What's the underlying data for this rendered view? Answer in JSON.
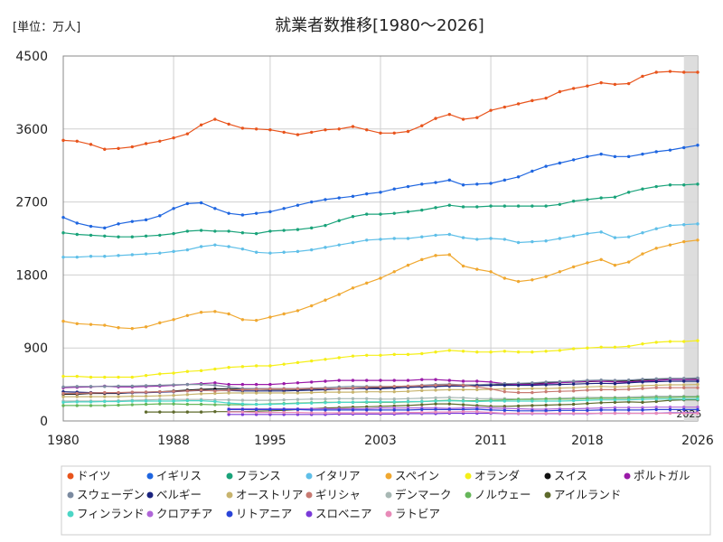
{
  "chart_data": {
    "type": "line",
    "title": "就業者数推移[1980～2026]",
    "unit_label": "[単位：万人]",
    "ylim": [
      0,
      4500
    ],
    "xlim": [
      1980,
      2026
    ],
    "y_ticks": [
      "0",
      "900",
      "1800",
      "2700",
      "3600",
      "4500"
    ],
    "x_ticks": [
      "1980",
      "1988",
      "1995",
      "2003",
      "2011",
      "2018",
      "2026"
    ],
    "highlight_label": "2025",
    "highlight_range": [
      2025,
      2026
    ],
    "grid": true,
    "legend_position": "bottom",
    "series": [
      {
        "name": "ドイツ",
        "color": "#e8541c",
        "x0": 1980,
        "values": [
          3460,
          3450,
          3410,
          3350,
          3360,
          3380,
          3420,
          3450,
          3490,
          3540,
          3650,
          3720,
          3660,
          3610,
          3600,
          3590,
          3560,
          3530,
          3560,
          3590,
          3600,
          3630,
          3590,
          3550,
          3550,
          3570,
          3640,
          3730,
          3780,
          3720,
          3740,
          3830,
          3870,
          3910,
          3950,
          3980,
          4060,
          4100,
          4130,
          4170,
          4150,
          4160,
          4250,
          4300,
          4310,
          4300,
          4300
        ]
      },
      {
        "name": "イギリス",
        "color": "#1f66e0",
        "x0": 1980,
        "values": [
          2510,
          2440,
          2400,
          2380,
          2430,
          2460,
          2480,
          2530,
          2620,
          2680,
          2690,
          2620,
          2560,
          2540,
          2560,
          2580,
          2620,
          2660,
          2700,
          2730,
          2750,
          2770,
          2800,
          2820,
          2860,
          2890,
          2920,
          2940,
          2970,
          2910,
          2920,
          2930,
          2970,
          3010,
          3080,
          3140,
          3180,
          3220,
          3260,
          3290,
          3260,
          3260,
          3290,
          3320,
          3340,
          3370,
          3400
        ]
      },
      {
        "name": "フランス",
        "color": "#1aa37a",
        "x0": 1980,
        "values": [
          2320,
          2300,
          2290,
          2280,
          2270,
          2270,
          2280,
          2290,
          2310,
          2340,
          2350,
          2340,
          2340,
          2320,
          2310,
          2340,
          2350,
          2360,
          2380,
          2410,
          2470,
          2520,
          2550,
          2550,
          2560,
          2580,
          2600,
          2630,
          2660,
          2640,
          2640,
          2650,
          2650,
          2650,
          2650,
          2650,
          2670,
          2710,
          2730,
          2750,
          2760,
          2820,
          2860,
          2890,
          2910,
          2910,
          2920
        ]
      },
      {
        "name": "イタリア",
        "color": "#5fbfe8",
        "x0": 1980,
        "values": [
          2020,
          2020,
          2030,
          2030,
          2040,
          2050,
          2060,
          2070,
          2090,
          2110,
          2150,
          2170,
          2150,
          2120,
          2080,
          2070,
          2080,
          2090,
          2110,
          2140,
          2170,
          2200,
          2230,
          2240,
          2250,
          2250,
          2270,
          2290,
          2300,
          2260,
          2240,
          2250,
          2240,
          2200,
          2210,
          2220,
          2250,
          2280,
          2310,
          2330,
          2260,
          2270,
          2320,
          2370,
          2410,
          2420,
          2430
        ]
      },
      {
        "name": "スペイン",
        "color": "#f0a830",
        "x0": 1980,
        "values": [
          1230,
          1200,
          1190,
          1180,
          1150,
          1140,
          1160,
          1210,
          1250,
          1300,
          1340,
          1350,
          1320,
          1250,
          1240,
          1280,
          1320,
          1360,
          1420,
          1490,
          1560,
          1640,
          1700,
          1760,
          1840,
          1920,
          1990,
          2040,
          2050,
          1910,
          1870,
          1840,
          1760,
          1720,
          1740,
          1780,
          1840,
          1900,
          1950,
          1990,
          1920,
          1960,
          2060,
          2130,
          2170,
          2210,
          2230
        ]
      },
      {
        "name": "オランダ",
        "color": "#f5ef18",
        "x0": 1980,
        "values": [
          550,
          550,
          540,
          540,
          540,
          540,
          560,
          580,
          590,
          610,
          620,
          640,
          660,
          670,
          680,
          680,
          700,
          720,
          740,
          760,
          780,
          800,
          810,
          810,
          820,
          820,
          830,
          850,
          870,
          860,
          850,
          850,
          860,
          850,
          850,
          860,
          870,
          890,
          900,
          910,
          910,
          920,
          950,
          970,
          980,
          980,
          990
        ]
      },
      {
        "name": "スイス",
        "color": "#111111",
        "x0": 1980,
        "values": [
          330,
          330,
          340,
          340,
          340,
          350,
          355,
          360,
          370,
          380,
          390,
          395,
          395,
          390,
          390,
          390,
          390,
          390,
          395,
          400,
          400,
          405,
          410,
          410,
          410,
          415,
          420,
          425,
          435,
          440,
          440,
          440,
          450,
          455,
          465,
          470,
          475,
          480,
          485,
          490,
          490,
          495,
          505,
          515,
          520,
          520,
          525
        ]
      },
      {
        "name": "ポルトガル",
        "color": "#9a1aa8",
        "x0": 1980,
        "values": [
          410,
          415,
          420,
          430,
          420,
          420,
          425,
          430,
          440,
          450,
          460,
          470,
          450,
          450,
          450,
          450,
          460,
          470,
          480,
          490,
          500,
          500,
          500,
          500,
          500,
          500,
          510,
          510,
          500,
          490,
          490,
          480,
          460,
          450,
          450,
          460,
          470,
          480,
          490,
          490,
          480,
          480,
          490,
          500,
          510,
          510,
          510
        ]
      },
      {
        "name": "スウェーデン",
        "color": "#7b8aa0",
        "x0": 1980,
        "values": [
          420,
          425,
          425,
          425,
          430,
          430,
          435,
          440,
          445,
          450,
          450,
          440,
          420,
          400,
          400,
          400,
          400,
          400,
          405,
          410,
          420,
          425,
          425,
          425,
          425,
          430,
          440,
          450,
          455,
          445,
          445,
          455,
          460,
          465,
          470,
          480,
          485,
          490,
          500,
          505,
          500,
          505,
          515,
          520,
          525,
          525,
          530
        ]
      },
      {
        "name": "ベルギー",
        "color": "#1a237e",
        "x0": 1980,
        "values": [
          360,
          355,
          350,
          345,
          345,
          350,
          350,
          355,
          360,
          370,
          375,
          375,
          375,
          370,
          370,
          370,
          370,
          375,
          380,
          385,
          395,
          400,
          400,
          400,
          405,
          415,
          420,
          425,
          430,
          430,
          435,
          440,
          440,
          440,
          440,
          445,
          450,
          455,
          460,
          465,
          460,
          470,
          480,
          485,
          490,
          490,
          490
        ]
      },
      {
        "name": "オーストリア",
        "color": "#c8b46e",
        "x0": 1980,
        "values": [
          300,
          300,
          300,
          300,
          300,
          305,
          305,
          310,
          315,
          325,
          335,
          340,
          345,
          345,
          345,
          345,
          345,
          345,
          350,
          355,
          355,
          355,
          360,
          360,
          360,
          365,
          375,
          380,
          385,
          385,
          385,
          390,
          395,
          395,
          400,
          400,
          405,
          410,
          420,
          425,
          420,
          425,
          435,
          440,
          445,
          445,
          450
        ]
      },
      {
        "name": "ギリシャ",
        "color": "#c87a72",
        "x0": 1980,
        "values": [
          340,
          340,
          345,
          350,
          350,
          355,
          355,
          360,
          365,
          370,
          380,
          370,
          380,
          385,
          390,
          395,
          395,
          395,
          400,
          400,
          400,
          405,
          415,
          420,
          425,
          430,
          435,
          440,
          445,
          440,
          420,
          395,
          360,
          350,
          350,
          360,
          365,
          370,
          380,
          385,
          385,
          390,
          400,
          410,
          410,
          410,
          410
        ]
      },
      {
        "name": "デンマーク",
        "color": "#a8b8b4",
        "x0": 1980,
        "values": [
          245,
          245,
          245,
          245,
          250,
          255,
          260,
          265,
          265,
          265,
          265,
          260,
          260,
          255,
          255,
          255,
          260,
          265,
          270,
          270,
          275,
          275,
          275,
          270,
          270,
          275,
          280,
          285,
          290,
          285,
          275,
          275,
          275,
          270,
          275,
          275,
          280,
          285,
          290,
          290,
          290,
          295,
          300,
          305,
          305,
          305,
          305
        ]
      },
      {
        "name": "ノルウェー",
        "color": "#66b65a",
        "x0": 1980,
        "values": [
          190,
          190,
          190,
          190,
          195,
          200,
          205,
          210,
          210,
          205,
          205,
          200,
          200,
          200,
          205,
          210,
          215,
          220,
          225,
          230,
          230,
          230,
          230,
          230,
          230,
          235,
          240,
          250,
          255,
          250,
          250,
          255,
          260,
          265,
          265,
          270,
          270,
          270,
          275,
          280,
          280,
          280,
          285,
          290,
          290,
          295,
          295
        ]
      },
      {
        "name": "アイルランド",
        "color": "#5e6a2c",
        "x0": 1986,
        "values": [
          110,
          110,
          110,
          110,
          110,
          115,
          115,
          115,
          120,
          125,
          130,
          140,
          150,
          160,
          165,
          170,
          175,
          180,
          185,
          190,
          200,
          210,
          210,
          200,
          190,
          180,
          180,
          185,
          190,
          195,
          200,
          205,
          215,
          225,
          230,
          235,
          230,
          240,
          255,
          260,
          260
        ]
      },
      {
        "name": "フィンランド",
        "color": "#4cd6c6",
        "x0": 1980,
        "values": [
          230,
          235,
          235,
          240,
          240,
          245,
          245,
          245,
          245,
          250,
          250,
          240,
          220,
          210,
          205,
          205,
          210,
          215,
          220,
          225,
          230,
          230,
          235,
          235,
          235,
          240,
          240,
          245,
          250,
          245,
          240,
          245,
          245,
          245,
          245,
          245,
          245,
          250,
          255,
          260,
          260,
          260,
          265,
          270,
          270,
          270,
          270
        ]
      },
      {
        "name": "クロアチア",
        "color": "#b066d8",
        "x0": 1992,
        "values": [
          150,
          150,
          150,
          150,
          150,
          150,
          150,
          150,
          150,
          150,
          150,
          160,
          160,
          160,
          160,
          160,
          155,
          160,
          165,
          160,
          155,
          150,
          145,
          145,
          150,
          150,
          155,
          160,
          165,
          165,
          165,
          170,
          170,
          170,
          170
        ]
      },
      {
        "name": "リトアニア",
        "color": "#2a44d8",
        "x0": 1992,
        "values": [
          140,
          140,
          140,
          140,
          140,
          140,
          135,
          135,
          135,
          135,
          135,
          135,
          135,
          135,
          140,
          140,
          140,
          140,
          145,
          135,
          130,
          125,
          125,
          125,
          130,
          130,
          130,
          135,
          135,
          135,
          135,
          140,
          140,
          140,
          140
        ]
      },
      {
        "name": "スロベニア",
        "color": "#7a3ad8",
        "x0": 1992,
        "values": [
          80,
          80,
          80,
          80,
          80,
          80,
          80,
          80,
          85,
          85,
          85,
          85,
          85,
          90,
          90,
          90,
          95,
          95,
          95,
          95,
          90,
          90,
          90,
          90,
          90,
          90,
          90,
          95,
          95,
          95,
          95,
          95,
          100,
          100,
          100
        ]
      },
      {
        "name": "ラトビア",
        "color": "#e88ab8",
        "x0": 1992,
        "values": [
          110,
          110,
          105,
          105,
          105,
          105,
          100,
          100,
          100,
          100,
          100,
          100,
          100,
          105,
          105,
          110,
          110,
          115,
          115,
          105,
          95,
          95,
          95,
          95,
          95,
          95,
          95,
          95,
          95,
          95,
          95,
          95,
          95,
          95,
          95
        ]
      }
    ]
  }
}
